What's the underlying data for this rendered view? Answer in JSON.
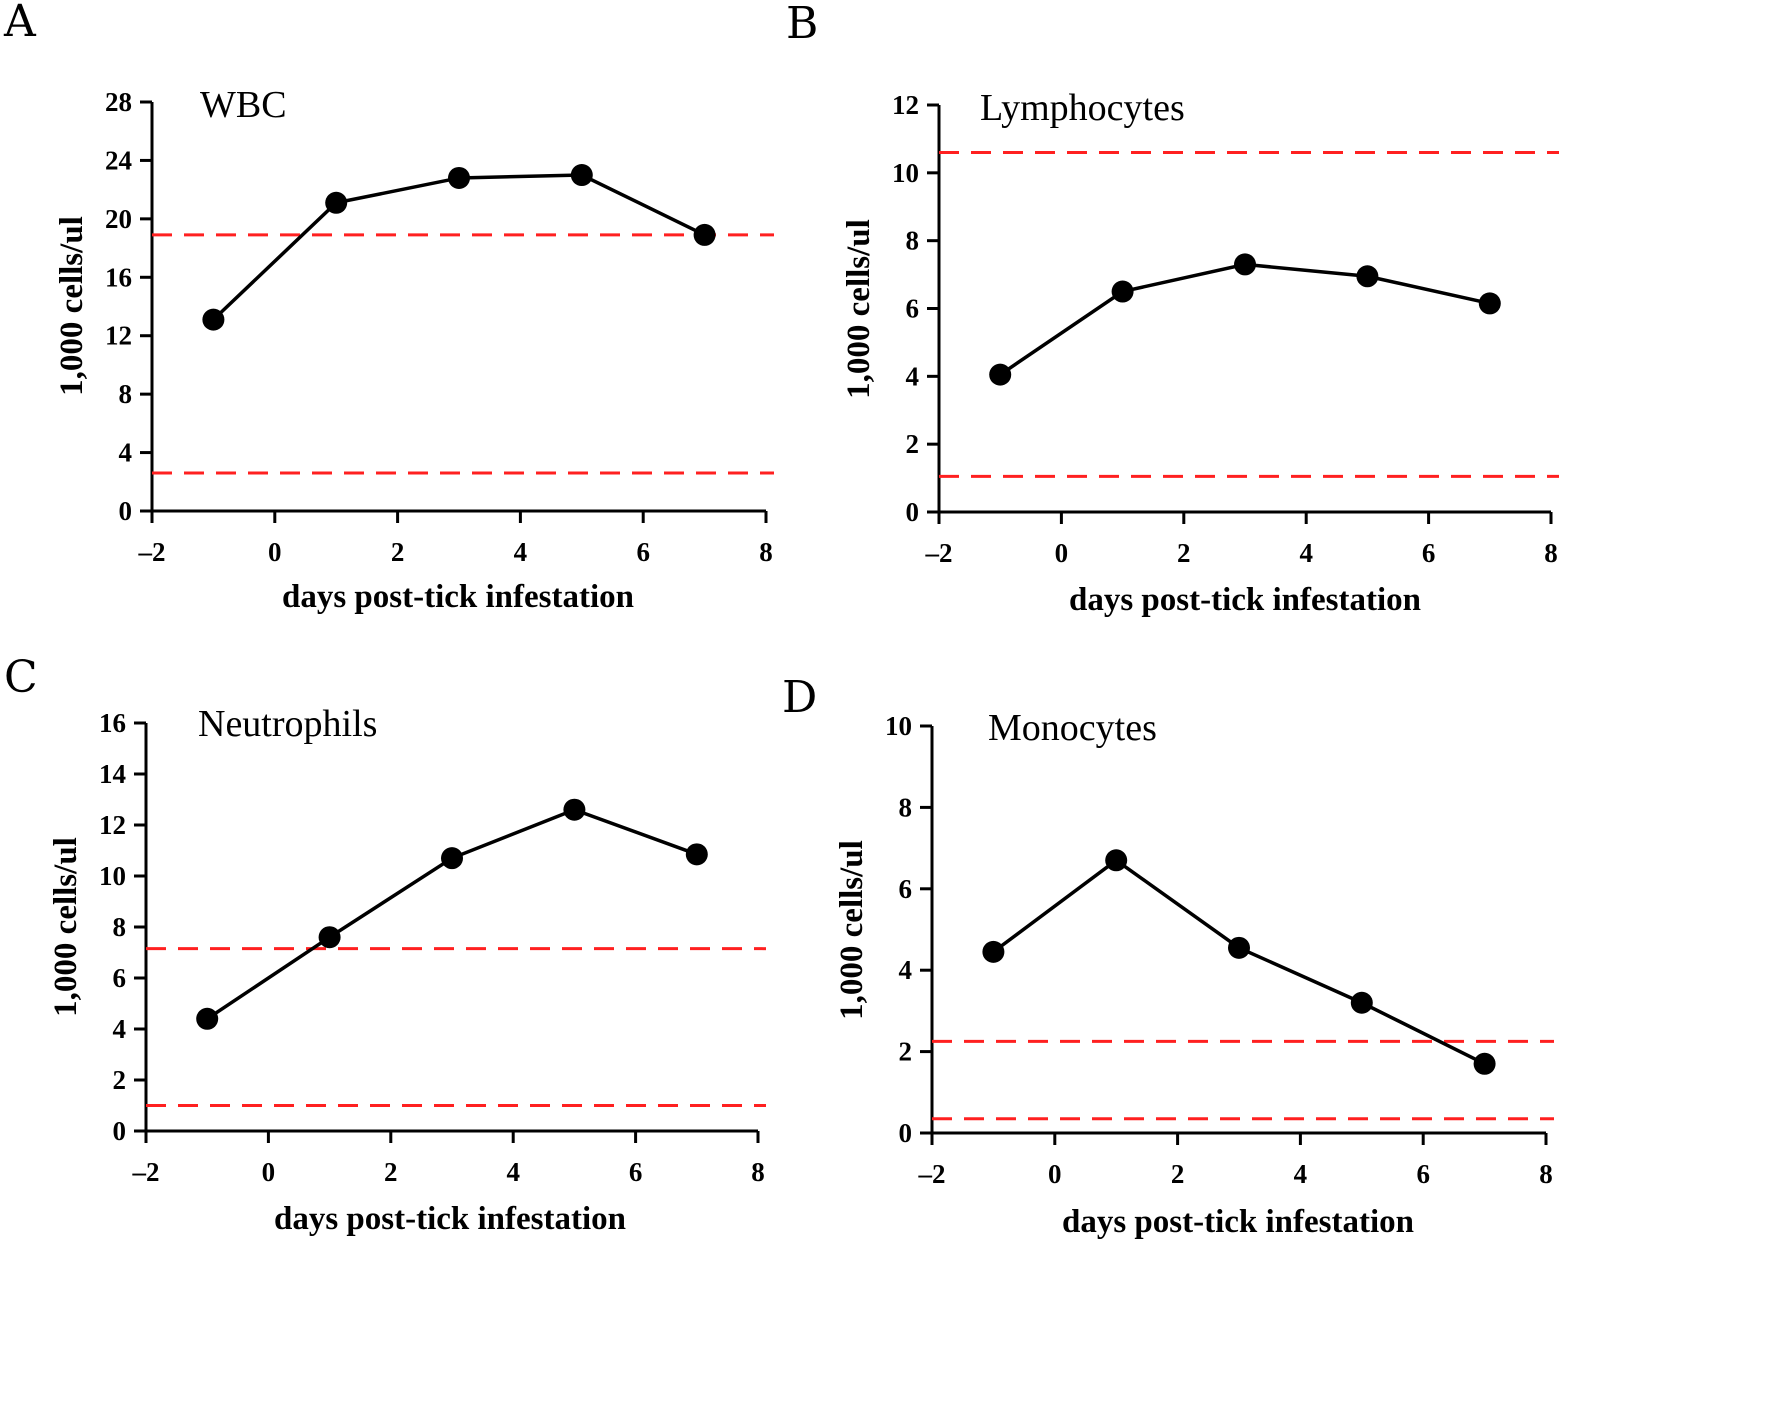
{
  "colors": {
    "series": "#000000",
    "reference": "#ff2020"
  },
  "chart_data": [
    {
      "panel": "A",
      "type": "line",
      "title": "WBC",
      "xlabel": "days post-tick infestation",
      "ylabel": "1,000 cells/ul",
      "x": [
        -1,
        1,
        3,
        5,
        7
      ],
      "values": [
        13.1,
        21.1,
        22.8,
        23.0,
        18.9
      ],
      "xlim": [
        -2,
        8
      ],
      "ylim": [
        0,
        28
      ],
      "xticks": [
        "-2",
        "0",
        "2",
        "4",
        "6",
        "8"
      ],
      "yticks": [
        "0",
        "4",
        "8",
        "12",
        "16",
        "20",
        "24",
        "28"
      ],
      "reference_lines": [
        18.9,
        2.6
      ]
    },
    {
      "panel": "B",
      "type": "line",
      "title": "Lymphocytes",
      "xlabel": "days post-tick infestation",
      "ylabel": "1,000 cells/ul",
      "x": [
        -1,
        1,
        3,
        5,
        7
      ],
      "values": [
        4.05,
        6.5,
        7.3,
        6.95,
        6.15
      ],
      "xlim": [
        -2,
        8
      ],
      "ylim": [
        0,
        12
      ],
      "xticks": [
        "-2",
        "0",
        "2",
        "4",
        "6",
        "8"
      ],
      "yticks": [
        "0",
        "2",
        "4",
        "6",
        "8",
        "10",
        "12"
      ],
      "reference_lines": [
        10.6,
        1.05
      ]
    },
    {
      "panel": "C",
      "type": "line",
      "title": "Neutrophils",
      "xlabel": "days post-tick infestation",
      "ylabel": "1,000 cells/ul",
      "x": [
        -1,
        1,
        3,
        5,
        7
      ],
      "values": [
        4.4,
        7.6,
        10.7,
        12.6,
        10.85
      ],
      "xlim": [
        -2,
        8
      ],
      "ylim": [
        0,
        16
      ],
      "xticks": [
        "-2",
        "0",
        "2",
        "4",
        "6",
        "8"
      ],
      "yticks": [
        "0",
        "2",
        "4",
        "6",
        "8",
        "10",
        "12",
        "14",
        "16"
      ],
      "reference_lines": [
        7.15,
        1.0
      ]
    },
    {
      "panel": "D",
      "type": "line",
      "title": "Monocytes",
      "xlabel": "days post-tick infestation",
      "ylabel": "1,000 cells/ul",
      "x": [
        -1,
        1,
        3,
        5,
        7
      ],
      "values": [
        4.45,
        6.7,
        4.55,
        3.2,
        1.7
      ],
      "xlim": [
        -2,
        8
      ],
      "ylim": [
        0,
        10
      ],
      "xticks": [
        "-2",
        "0",
        "2",
        "4",
        "6",
        "8"
      ],
      "yticks": [
        "0",
        "2",
        "4",
        "6",
        "8",
        "10"
      ],
      "reference_lines": [
        2.25,
        0.35
      ]
    }
  ]
}
